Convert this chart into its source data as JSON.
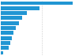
{
  "values": [
    87800,
    47700,
    32100,
    26600,
    21900,
    18200,
    15800,
    13100,
    11500,
    9800,
    2900
  ],
  "bar_color": "#2196d3",
  "background_color": "#ffffff",
  "grid_color": "#cccccc",
  "xlim": [
    0,
    95000
  ]
}
